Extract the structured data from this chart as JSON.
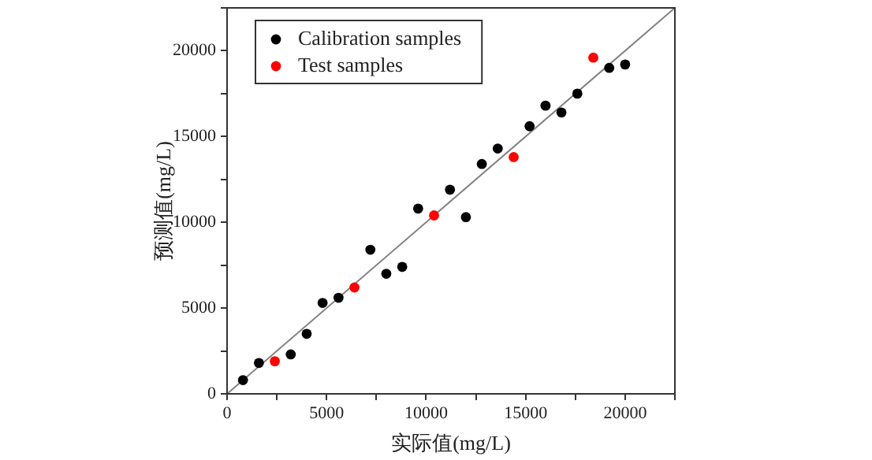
{
  "chart_data": {
    "type": "scatter",
    "xlabel": "实际值(mg/L)",
    "ylabel": "预测值(mg/L)",
    "xlim": [
      0,
      22500
    ],
    "ylim": [
      0,
      22500
    ],
    "xticks": [
      0,
      {
        "value": 2500,
        "label": null
      },
      5000,
      {
        "value": 7500,
        "label": null
      },
      10000,
      {
        "value": 12500,
        "label": null
      },
      15000,
      {
        "value": 17500,
        "label": null
      },
      20000,
      {
        "value": 22500,
        "label": null
      }
    ],
    "yticks": [
      0,
      {
        "value": 2500,
        "label": null
      },
      5000,
      {
        "value": 7500,
        "label": null
      },
      10000,
      {
        "value": 12500,
        "label": null
      },
      15000,
      {
        "value": 17500,
        "label": null
      },
      20000,
      {
        "value": 22500,
        "label": null
      }
    ],
    "grid": false,
    "legend": "top left",
    "marker": "circle",
    "series": [
      {
        "type": "line",
        "color": "#808080",
        "marker": "none",
        "x": [
          0,
          22500
        ],
        "values": [
          0,
          22500
        ]
      },
      {
        "name": "Calibration samples",
        "color": "#000000",
        "x": [
          800,
          1600,
          3200,
          4000,
          4800,
          5600,
          7200,
          8000,
          8800,
          9600,
          11200,
          12000,
          12800,
          13600,
          15200,
          16000,
          16800,
          17600,
          19200,
          20000
        ],
        "values": [
          800,
          1800,
          2300,
          3500,
          5300,
          5600,
          8400,
          7000,
          7400,
          10800,
          11900,
          10300,
          13400,
          14300,
          15600,
          16800,
          16400,
          17500,
          19000,
          19200
        ]
      },
      {
        "name": "Test samples",
        "color": "#ff0000",
        "x": [
          2400,
          6400,
          10400,
          14400,
          18400
        ],
        "values": [
          1900,
          6200,
          10400,
          13800,
          19600
        ]
      }
    ]
  }
}
